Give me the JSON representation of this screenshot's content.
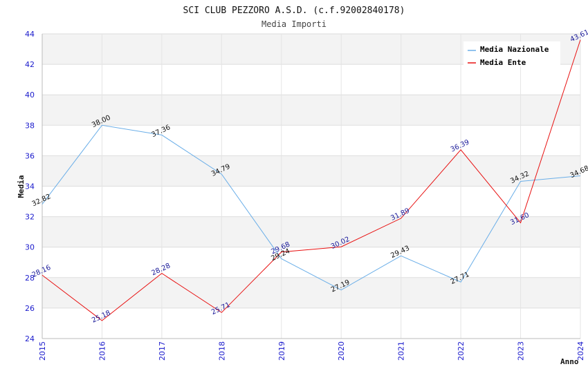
{
  "chart_data": {
    "type": "line",
    "title": "SCI CLUB PEZZORO A.S.D. (c.f.92002840178)",
    "subtitle": "Media Importi",
    "xlabel": "Anno",
    "ylabel": "Media",
    "ylim": [
      24,
      44
    ],
    "yticks": [
      24,
      26,
      28,
      30,
      32,
      34,
      36,
      38,
      40,
      42,
      44
    ],
    "categories": [
      "2015",
      "2016",
      "2017",
      "2018",
      "2019",
      "2020",
      "2021",
      "2022",
      "2023",
      "2024"
    ],
    "series": [
      {
        "name": "Media Nazionale",
        "color": "#6aaee8",
        "values": [
          32.82,
          38.0,
          37.36,
          34.79,
          29.24,
          27.19,
          29.43,
          27.71,
          34.32,
          34.68
        ],
        "labels": [
          "32.82",
          "38.00",
          "37.36",
          "34.79",
          "29.24",
          "27.19",
          "29.43",
          "27.71",
          "34.32",
          "34.68"
        ]
      },
      {
        "name": "Media Ente",
        "color": "#e81010",
        "values": [
          28.16,
          25.18,
          28.28,
          25.71,
          29.68,
          30.02,
          31.89,
          36.39,
          31.6,
          43.61
        ],
        "labels": [
          "28.16",
          "25.18",
          "28.28",
          "25.71",
          "29.68",
          "30.02",
          "31.89",
          "36.39",
          "31.60",
          "43.61"
        ]
      }
    ],
    "legend": "top-right",
    "grid": true
  }
}
